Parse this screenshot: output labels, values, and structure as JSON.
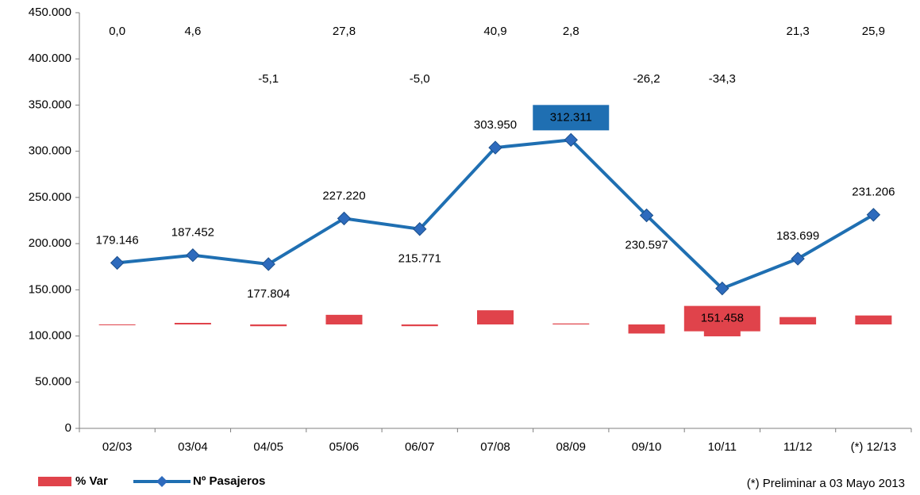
{
  "chart_data": {
    "type": "bar_line",
    "categories": [
      "02/03",
      "03/04",
      "04/05",
      "05/06",
      "06/07",
      "07/08",
      "08/09",
      "09/10",
      "10/11",
      "11/12",
      "(*) 12/13"
    ],
    "series": [
      {
        "name": "% Var",
        "type": "bar",
        "axis": "y2",
        "color": "#e0434b",
        "values": [
          0.0,
          4.6,
          -5.1,
          27.8,
          -5.0,
          40.9,
          2.8,
          -26.2,
          -34.3,
          21.3,
          25.9
        ],
        "value_labels": [
          "0,0",
          "4,6",
          "-5,1",
          "27,8",
          "-5,0",
          "40,9",
          "2,8",
          "-26,2",
          "-34,3",
          "21,3",
          "25,9"
        ]
      },
      {
        "name": "Nº Pasajeros",
        "type": "line",
        "color": "#1f6fb2",
        "marker_color": "#2e6bbd",
        "values": [
          179146,
          187452,
          177804,
          227220,
          215771,
          303950,
          312311,
          230597,
          151458,
          183699,
          231206
        ],
        "value_labels": [
          "179.146",
          "187.452",
          "177.804",
          "227.220",
          "215.771",
          "303.950",
          "312.311",
          "230.597",
          "151.458",
          "183.699",
          "231.206"
        ]
      }
    ],
    "highlighted_points": [
      {
        "index": 6,
        "color": "#1f6fb2"
      },
      {
        "index": 8,
        "color": "#e0434b"
      }
    ],
    "ylim": [
      0,
      450000
    ],
    "yticks": [
      0,
      {
        "value": 50000,
        "label": "50.000"
      },
      {
        "value": 100000,
        "label": "100.000"
      },
      {
        "value": 150000,
        "label": "150.000"
      },
      {
        "value": 200000,
        "label": "200.000"
      },
      {
        "value": 250000,
        "label": "250.000"
      },
      {
        "value": 300000,
        "label": "300.000"
      },
      {
        "value": 350000,
        "label": "350.000"
      },
      {
        "value": 400000,
        "label": "400.000"
      },
      {
        "value": 450000,
        "label": "450.000"
      }
    ],
    "y2lim": [
      -300,
      900
    ],
    "grid": false,
    "legend": "bottom-left",
    "note": "(*) Preliminar a 03 Mayo 2013"
  }
}
